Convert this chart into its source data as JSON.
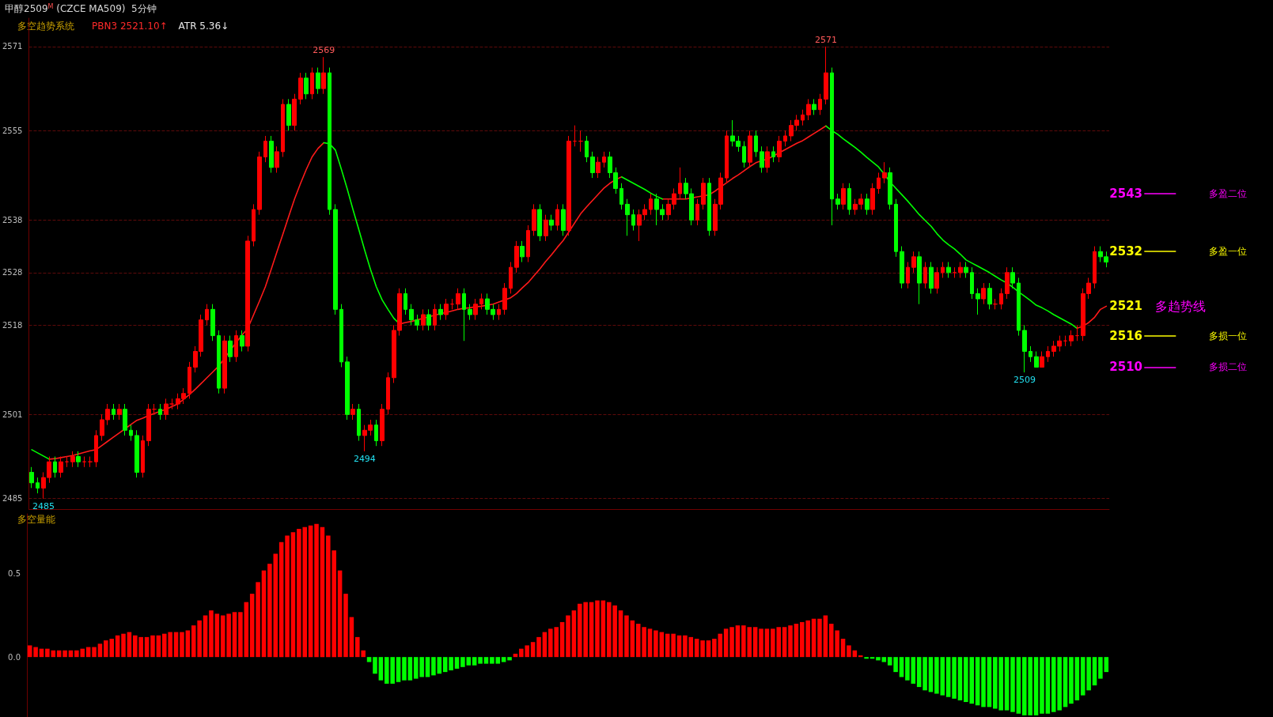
{
  "chart_data": [
    {
      "type": "candlestick",
      "title": "甲醇2509$^{M}$ (CZCE MA509)  5分钟",
      "subtitle": "多空趋势系统",
      "categories": [
        null,
        null,
        null,
        null,
        null,
        null,
        null,
        null,
        null,
        null,
        null,
        null,
        null,
        null,
        null,
        null,
        null,
        null,
        null,
        null,
        null,
        null,
        null,
        null,
        null,
        null,
        null,
        null,
        null,
        null,
        null,
        null,
        null,
        null,
        null,
        null,
        null,
        null,
        null,
        null,
        null,
        null,
        null,
        null,
        null,
        null,
        null,
        null,
        null,
        null,
        null,
        null,
        null,
        null,
        null,
        null,
        null,
        null,
        null,
        null,
        null,
        null,
        null,
        null,
        null,
        null,
        null,
        null,
        null,
        null,
        null,
        null,
        null,
        null,
        null,
        null,
        null,
        null,
        null,
        null,
        null,
        null,
        null,
        null,
        null,
        null,
        null,
        null,
        null,
        null,
        null,
        null,
        null,
        null,
        null,
        null,
        null,
        null,
        null,
        null,
        null,
        null,
        null,
        null,
        null,
        null,
        null,
        null,
        null,
        null,
        null,
        null,
        null,
        null,
        null,
        null,
        null,
        null,
        null,
        null,
        null,
        null,
        null,
        null,
        null,
        null,
        null,
        null,
        null,
        null,
        null,
        null,
        null,
        null,
        null,
        null,
        null,
        null,
        null,
        null,
        null,
        null,
        null,
        null,
        null,
        null,
        null,
        null,
        null,
        null,
        null,
        null,
        null,
        null,
        null,
        null,
        null,
        null,
        null,
        null,
        null,
        null,
        null,
        null,
        null,
        null,
        null,
        null,
        null,
        null,
        null,
        null,
        null,
        null,
        null,
        null,
        null,
        null,
        null,
        null,
        null,
        null,
        null,
        null,
        null
      ],
      "ohlc": [
        [
          2490,
          2491,
          2487,
          2488
        ],
        [
          2488,
          2489,
          2486,
          2487
        ],
        [
          2487,
          2490,
          2485,
          2489
        ],
        [
          2489,
          2493,
          2488,
          2492
        ],
        [
          2492,
          2493,
          2489,
          2490
        ],
        [
          2490,
          2493,
          2489,
          2492
        ],
        [
          2492,
          2493,
          2491,
          2492
        ],
        [
          2492,
          2494,
          2491,
          2493
        ],
        [
          2493,
          2494,
          2491,
          2492
        ],
        [
          2492,
          2493,
          2491,
          2492
        ],
        [
          2492,
          2493,
          2491,
          2492
        ],
        [
          2492,
          2498,
          2491,
          2497
        ],
        [
          2497,
          2501,
          2496,
          2500
        ],
        [
          2500,
          2503,
          2499,
          2502
        ],
        [
          2502,
          2503,
          2500,
          2501
        ],
        [
          2501,
          2503,
          2500,
          2502
        ],
        [
          2502,
          2503,
          2497,
          2498
        ],
        [
          2498,
          2499,
          2496,
          2497
        ],
        [
          2497,
          2498,
          2489,
          2490
        ],
        [
          2490,
          2497,
          2489,
          2496
        ],
        [
          2496,
          2503,
          2495,
          2502
        ],
        [
          2502,
          2503,
          2501,
          2502
        ],
        [
          2502,
          2503,
          2500,
          2501
        ],
        [
          2501,
          2504,
          2500,
          2503
        ],
        [
          2503,
          2504,
          2502,
          2503
        ],
        [
          2503,
          2505,
          2502,
          2504
        ],
        [
          2504,
          2506,
          2503,
          2505
        ],
        [
          2505,
          2511,
          2504,
          2510
        ],
        [
          2510,
          2514,
          2509,
          2513
        ],
        [
          2513,
          2520,
          2512,
          2519
        ],
        [
          2519,
          2522,
          2518,
          2521
        ],
        [
          2521,
          2522,
          2515,
          2516
        ],
        [
          2516,
          2517,
          2505,
          2506
        ],
        [
          2506,
          2516,
          2505,
          2515
        ],
        [
          2515,
          2516,
          2511,
          2512
        ],
        [
          2512,
          2517,
          2511,
          2516
        ],
        [
          2516,
          2517,
          2513,
          2514
        ],
        [
          2514,
          2535,
          2513,
          2534
        ],
        [
          2534,
          2541,
          2533,
          2540
        ],
        [
          2540,
          2551,
          2539,
          2550
        ],
        [
          2550,
          2554,
          2549,
          2553
        ],
        [
          2553,
          2554,
          2547,
          2548
        ],
        [
          2548,
          2552,
          2547,
          2551
        ],
        [
          2551,
          2561,
          2550,
          2560
        ],
        [
          2560,
          2561,
          2555,
          2556
        ],
        [
          2556,
          2562,
          2555,
          2561
        ],
        [
          2561,
          2566,
          2560,
          2565
        ],
        [
          2565,
          2566,
          2561,
          2562
        ],
        [
          2562,
          2567,
          2561,
          2566
        ],
        [
          2566,
          2567,
          2562,
          2563
        ],
        [
          2563,
          2569,
          2562,
          2566
        ],
        [
          2566,
          2567,
          2539,
          2540
        ],
        [
          2540,
          2541,
          2520,
          2521
        ],
        [
          2521,
          2522,
          2510,
          2511
        ],
        [
          2511,
          2512,
          2500,
          2501
        ],
        [
          2501,
          2503,
          2500,
          2502
        ],
        [
          2502,
          2503,
          2496,
          2497
        ],
        [
          2497,
          2499,
          2494,
          2498
        ],
        [
          2498,
          2500,
          2497,
          2499
        ],
        [
          2499,
          2500,
          2495,
          2496
        ],
        [
          2496,
          2503,
          2495,
          2502
        ],
        [
          2502,
          2509,
          2501,
          2508
        ],
        [
          2508,
          2518,
          2507,
          2517
        ],
        [
          2517,
          2525,
          2516,
          2524
        ],
        [
          2524,
          2525,
          2520,
          2521
        ],
        [
          2521,
          2522,
          2518,
          2519
        ],
        [
          2519,
          2520,
          2517,
          2518
        ],
        [
          2518,
          2521,
          2517,
          2520
        ],
        [
          2520,
          2521,
          2517,
          2518
        ],
        [
          2518,
          2522,
          2517,
          2521
        ],
        [
          2521,
          2522,
          2519,
          2520
        ],
        [
          2520,
          2523,
          2519,
          2522
        ],
        [
          2522,
          2523,
          2521,
          2522
        ],
        [
          2522,
          2525,
          2521,
          2524
        ],
        [
          2524,
          2525,
          2515,
          2521
        ],
        [
          2521,
          2522,
          2519,
          2520
        ],
        [
          2520,
          2523,
          2519,
          2522
        ],
        [
          2522,
          2524,
          2521,
          2523
        ],
        [
          2523,
          2524,
          2520,
          2521
        ],
        [
          2521,
          2522,
          2519,
          2520
        ],
        [
          2520,
          2522,
          2519,
          2521
        ],
        [
          2521,
          2526,
          2520,
          2525
        ],
        [
          2525,
          2530,
          2524,
          2529
        ],
        [
          2529,
          2534,
          2528,
          2533
        ],
        [
          2533,
          2534,
          2530,
          2531
        ],
        [
          2531,
          2537,
          2530,
          2536
        ],
        [
          2536,
          2541,
          2535,
          2540
        ],
        [
          2540,
          2541,
          2534,
          2535
        ],
        [
          2535,
          2539,
          2534,
          2538
        ],
        [
          2538,
          2539,
          2536,
          2537
        ],
        [
          2537,
          2541,
          2536,
          2540
        ],
        [
          2540,
          2541,
          2535,
          2536
        ],
        [
          2536,
          2554,
          2535,
          2553
        ],
        [
          2553,
          2556,
          2552,
          2553
        ],
        [
          2553,
          2555,
          2551,
          2553
        ],
        [
          2553,
          2554,
          2549,
          2550
        ],
        [
          2550,
          2551,
          2546,
          2547
        ],
        [
          2547,
          2550,
          2546,
          2549
        ],
        [
          2549,
          2551,
          2548,
          2550
        ],
        [
          2550,
          2551,
          2546,
          2547
        ],
        [
          2547,
          2548,
          2543,
          2544
        ],
        [
          2544,
          2545,
          2540,
          2541
        ],
        [
          2541,
          2542,
          2535,
          2539
        ],
        [
          2539,
          2540,
          2536,
          2537
        ],
        [
          2537,
          2540,
          2534,
          2539
        ],
        [
          2539,
          2541,
          2538,
          2540
        ],
        [
          2540,
          2543,
          2539,
          2542
        ],
        [
          2542,
          2543,
          2537,
          2540
        ],
        [
          2540,
          2541,
          2538,
          2539
        ],
        [
          2539,
          2542,
          2538,
          2541
        ],
        [
          2541,
          2544,
          2540,
          2543
        ],
        [
          2543,
          2548,
          2542,
          2545
        ],
        [
          2545,
          2546,
          2542,
          2543
        ],
        [
          2543,
          2544,
          2537,
          2538
        ],
        [
          2538,
          2542,
          2537,
          2541
        ],
        [
          2541,
          2546,
          2540,
          2545
        ],
        [
          2545,
          2546,
          2535,
          2536
        ],
        [
          2536,
          2542,
          2535,
          2541
        ],
        [
          2541,
          2547,
          2540,
          2546
        ],
        [
          2546,
          2555,
          2545,
          2554
        ],
        [
          2554,
          2557,
          2552,
          2553
        ],
        [
          2553,
          2554,
          2551,
          2552
        ],
        [
          2552,
          2553,
          2548,
          2549
        ],
        [
          2549,
          2555,
          2548,
          2554
        ],
        [
          2554,
          2555,
          2550,
          2551
        ],
        [
          2551,
          2552,
          2547,
          2548
        ],
        [
          2548,
          2552,
          2547,
          2551
        ],
        [
          2551,
          2552,
          2549,
          2550
        ],
        [
          2550,
          2554,
          2549,
          2553
        ],
        [
          2553,
          2555,
          2552,
          2554
        ],
        [
          2554,
          2557,
          2553,
          2556
        ],
        [
          2556,
          2558,
          2555,
          2557
        ],
        [
          2557,
          2559,
          2556,
          2558
        ],
        [
          2558,
          2561,
          2557,
          2560
        ],
        [
          2560,
          2561,
          2558,
          2559
        ],
        [
          2559,
          2562,
          2558,
          2561
        ],
        [
          2561,
          2571,
          2560,
          2566
        ],
        [
          2566,
          2567,
          2537,
          2542
        ],
        [
          2542,
          2543,
          2540,
          2541
        ],
        [
          2541,
          2545,
          2540,
          2544
        ],
        [
          2544,
          2545,
          2539,
          2540
        ],
        [
          2540,
          2542,
          2539,
          2541
        ],
        [
          2541,
          2543,
          2540,
          2542
        ],
        [
          2542,
          2543,
          2539,
          2540
        ],
        [
          2540,
          2545,
          2539,
          2544
        ],
        [
          2544,
          2547,
          2543,
          2546
        ],
        [
          2546,
          2549,
          2545,
          2547
        ],
        [
          2547,
          2548,
          2540,
          2541
        ],
        [
          2541,
          2542,
          2531,
          2532
        ],
        [
          2532,
          2533,
          2525,
          2526
        ],
        [
          2526,
          2530,
          2525,
          2529
        ],
        [
          2529,
          2532,
          2528,
          2531
        ],
        [
          2531,
          2532,
          2522,
          2526
        ],
        [
          2526,
          2530,
          2525,
          2529
        ],
        [
          2529,
          2530,
          2524,
          2525
        ],
        [
          2525,
          2529,
          2524,
          2528
        ],
        [
          2528,
          2530,
          2527,
          2529
        ],
        [
          2529,
          2530,
          2527,
          2528
        ],
        [
          2528,
          2529,
          2527,
          2528
        ],
        [
          2528,
          2530,
          2527,
          2529
        ],
        [
          2529,
          2530,
          2527,
          2528
        ],
        [
          2528,
          2529,
          2523,
          2524
        ],
        [
          2524,
          2525,
          2520,
          2523
        ],
        [
          2523,
          2526,
          2522,
          2525
        ],
        [
          2525,
          2526,
          2521,
          2522
        ],
        [
          2522,
          2523,
          2521,
          2522
        ],
        [
          2522,
          2525,
          2521,
          2524
        ],
        [
          2524,
          2529,
          2523,
          2528
        ],
        [
          2528,
          2529,
          2525,
          2526
        ],
        [
          2526,
          2527,
          2516,
          2517
        ],
        [
          2517,
          2518,
          2509,
          2513
        ],
        [
          2513,
          2514,
          2511,
          2512
        ],
        [
          2512,
          2513,
          2510,
          2510
        ],
        [
          2510,
          2513,
          2510,
          2512
        ],
        [
          2512,
          2514,
          2511,
          2513
        ],
        [
          2513,
          2515,
          2512,
          2514
        ],
        [
          2514,
          2516,
          2513,
          2515
        ],
        [
          2515,
          2516,
          2514,
          2515
        ],
        [
          2515,
          2517,
          2514,
          2516
        ],
        [
          2516,
          2518,
          2515,
          2516
        ],
        [
          2516,
          2525,
          2515,
          2524
        ],
        [
          2524,
          2527,
          2523,
          2526
        ],
        [
          2526,
          2533,
          2525,
          2532
        ],
        [
          2532,
          2533,
          2530,
          2531
        ],
        [
          2531,
          2532,
          2529,
          2530
        ]
      ],
      "colors": [
        "#00ff00",
        "#00ff00",
        "#ff0000",
        "#ff0000",
        "#00ff00",
        "#ff0000",
        "#ff0000",
        "#ff0000",
        "#00ff00",
        "#ff0000",
        "#ff0000",
        "#ff0000",
        "#ff0000",
        "#ff0000",
        "#00ff00",
        "#ff0000",
        "#00ff00",
        "#00ff00",
        "#00ff00",
        "#ff0000",
        "#ff0000",
        "#ff0000",
        "#00ff00",
        "#ff0000",
        "#ff0000",
        "#ff0000",
        "#ff0000",
        "#ff0000",
        "#ff0000",
        "#ff0000",
        "#ff0000",
        "#00ff00",
        "#00ff00",
        "#ff0000",
        "#00ff00",
        "#ff0000",
        "#00ff00",
        "#ff0000",
        "#ff0000",
        "#ff0000",
        "#ff0000",
        "#00ff00",
        "#ff0000",
        "#ff0000",
        "#00ff00",
        "#ff0000",
        "#ff0000",
        "#00ff00",
        "#ff0000",
        "#00ff00",
        "#ff0000",
        "#00ff00",
        "#00ff00",
        "#00ff00",
        "#00ff00",
        "#ff0000",
        "#00ff00",
        "#ff0000",
        "#ff0000",
        "#00ff00",
        "#ff0000",
        "#ff0000",
        "#ff0000",
        "#ff0000",
        "#00ff00",
        "#00ff00",
        "#00ff00",
        "#ff0000",
        "#00ff00",
        "#ff0000",
        "#00ff00",
        "#ff0000",
        "#ff0000",
        "#ff0000",
        "#00ff00",
        "#00ff00",
        "#ff0000",
        "#ff0000",
        "#00ff00",
        "#00ff00",
        "#ff0000",
        "#ff0000",
        "#ff0000",
        "#ff0000",
        "#00ff00",
        "#ff0000",
        "#ff0000",
        "#00ff00",
        "#ff0000",
        "#00ff00",
        "#ff0000",
        "#00ff00",
        "#ff0000",
        "#ff0000",
        "#ff0000",
        "#00ff00",
        "#00ff00",
        "#ff0000",
        "#ff0000",
        "#00ff00",
        "#00ff00",
        "#00ff00",
        "#00ff00",
        "#00ff00",
        "#ff0000",
        "#ff0000",
        "#ff0000",
        "#00ff00",
        "#00ff00",
        "#ff0000",
        "#ff0000",
        "#ff0000",
        "#00ff00",
        "#00ff00",
        "#ff0000",
        "#ff0000",
        "#00ff00",
        "#ff0000",
        "#ff0000",
        "#ff0000",
        "#00ff00",
        "#00ff00",
        "#00ff00",
        "#ff0000",
        "#00ff00",
        "#00ff00",
        "#ff0000",
        "#00ff00",
        "#ff0000",
        "#ff0000",
        "#ff0000",
        "#ff0000",
        "#ff0000",
        "#ff0000",
        "#00ff00",
        "#ff0000",
        "#ff0000",
        "#00ff00",
        "#00ff00",
        "#ff0000",
        "#00ff00",
        "#ff0000",
        "#ff0000",
        "#00ff00",
        "#ff0000",
        "#ff0000",
        "#ff0000",
        "#00ff00",
        "#00ff00",
        "#00ff00",
        "#ff0000",
        "#ff0000",
        "#00ff00",
        "#ff0000",
        "#00ff00",
        "#ff0000",
        "#ff0000",
        "#00ff00",
        "#ff0000",
        "#ff0000",
        "#00ff00",
        "#00ff00",
        "#00ff00",
        "#ff0000",
        "#00ff00",
        "#ff0000",
        "#ff0000",
        "#ff0000",
        "#00ff00",
        "#00ff00",
        "#00ff00",
        "#00ff00",
        "#00ff00",
        "#ff0000",
        "#ff0000",
        "#ff0000",
        "#ff0000",
        "#ff0000",
        "#ff0000",
        "#ff0000",
        "#ff0000",
        "#ff0000",
        "#ff0000",
        "#00ff00",
        "#00ff00"
      ],
      "series": [
        {
          "type": "line",
          "color": "#ff1a1a",
          "values": [
            null,
            null,
            null,
            2492.5,
            2492.6,
            2492.8,
            2493,
            2493.2,
            2493.5,
            2493.8,
            2494.1,
            2494.3,
            2495.1,
            2495.9,
            2496.7,
            2497.5,
            2498.3,
            2499.1,
            2499.9,
            2500.3,
            2500.8,
            2501.2,
            2501.6,
            2502,
            2502.5,
            2503,
            2503.9,
            2504.8,
            2505.8,
            2506.9,
            2508,
            2509.1,
            2510.2,
            2511.7,
            2513.2,
            2514.7,
            2516.1,
            2517.4,
            2520,
            2522.6,
            2525.3,
            2528.6,
            2532,
            2535.3,
            2538.7,
            2542,
            2544.9,
            2547.6,
            2550,
            2551.6,
            2552.7,
            null,
            null,
            null,
            null,
            null,
            null,
            null,
            null,
            null,
            null,
            null,
            null,
            2518.2,
            2518.5,
            2518.7,
            2519,
            2519.3,
            2519.6,
            2519.9,
            2520.2,
            2520.4,
            2520.7,
            2521,
            2521.2,
            2521.3,
            2521.5,
            2521.6,
            2521.8,
            2522,
            2522.4,
            2522.8,
            2523.2,
            2524,
            2525.1,
            2526.1,
            2527.4,
            2528.7,
            2530.1,
            2531.4,
            2532.8,
            2534.1,
            2535.8,
            2537.5,
            2539.2,
            2540.5,
            2541.7,
            2542.9,
            2544.1,
            2545,
            2545.7,
            2546.2,
            null,
            null,
            null,
            null,
            null,
            null,
            2542,
            2542,
            2542,
            2542,
            2542,
            2542.2,
            2542.4,
            2542.6,
            2542.8,
            2543.5,
            2544.3,
            2545.1,
            2545.9,
            2546.6,
            2547.4,
            2548.2,
            2548.9,
            2549.3,
            2549.6,
            2550.2,
            2550.8,
            2551.4,
            2552,
            2552.6,
            2553.1,
            2553.8,
            2554.5,
            2555.2,
            2555.9,
            null,
            null,
            null,
            null,
            null,
            null,
            null,
            null,
            null,
            null,
            null,
            null,
            null,
            null,
            null,
            null,
            null,
            null,
            null,
            null,
            null,
            null,
            null,
            null,
            null,
            null,
            null,
            null,
            null,
            null,
            null,
            null,
            null,
            null,
            null,
            null,
            null,
            null,
            null,
            null,
            null,
            null,
            2517.4,
            2517.8,
            2518.5,
            2519.5,
            2521,
            2521.6
          ]
        },
        {
          "type": "line",
          "color": "#00ff00",
          "values": [
            2494.3,
            2493.7,
            2493.1,
            2492.5,
            null,
            null,
            null,
            null,
            null,
            null,
            null,
            null,
            null,
            null,
            null,
            null,
            null,
            null,
            null,
            null,
            null,
            null,
            null,
            null,
            null,
            null,
            null,
            null,
            null,
            null,
            null,
            null,
            null,
            null,
            null,
            null,
            null,
            null,
            null,
            null,
            null,
            null,
            null,
            null,
            null,
            null,
            null,
            null,
            null,
            null,
            2552.7,
            2552.5,
            2551.3,
            2547.7,
            2544,
            2540,
            2536.2,
            2532.3,
            2528.6,
            2525.3,
            2522.8,
            2521,
            2519.3,
            2518.2,
            null,
            null,
            null,
            null,
            null,
            null,
            null,
            null,
            null,
            null,
            null,
            null,
            null,
            null,
            null,
            null,
            null,
            null,
            null,
            null,
            null,
            null,
            null,
            null,
            null,
            null,
            null,
            null,
            null,
            null,
            null,
            null,
            null,
            null,
            null,
            null,
            null,
            2546.2,
            2545.6,
            2545,
            2544.4,
            2543.8,
            2543.1,
            2542.5,
            2542,
            null,
            null,
            null,
            null,
            null,
            null,
            null,
            null,
            null,
            null,
            null,
            null,
            null,
            null,
            null,
            null,
            null,
            null,
            null,
            null,
            null,
            null,
            null,
            null,
            null,
            null,
            null,
            2555.9,
            2555,
            2554.3,
            2553.4,
            2552.6,
            2551.8,
            2550.9,
            2549.9,
            2549,
            2548.1,
            2546.7,
            2545.2,
            2544,
            2542.8,
            2541.6,
            2540.3,
            2539,
            2537.9,
            2536.8,
            2535.4,
            2534.2,
            2533.3,
            2532.5,
            2531.5,
            2530.4,
            2529.8,
            2529.2,
            2528.6,
            2528,
            2527.3,
            2526.6,
            2526,
            2525.2,
            2524.3,
            2523.5,
            2522.7,
            2521.8,
            2521.3,
            2520.7,
            2520,
            2519.4,
            2518.8,
            2518.2,
            2517.4,
            null,
            null,
            null,
            null,
            null
          ]
        }
      ],
      "ylim": [
        2483,
        2576.4
      ],
      "yticks": [
        2485,
        2501,
        2518,
        2528,
        2538,
        2555,
        2571
      ],
      "grid": "y",
      "tick_labels": "y",
      "ref_lines": [
        {
          "axis": "y",
          "value": 2543,
          "label": "2543",
          "color": "#ff00ff",
          "line_style": "solid"
        },
        {
          "axis": "y",
          "value": 2532,
          "label": "2532",
          "color": "#ffff00",
          "line_style": "solid"
        },
        {
          "axis": "y",
          "value": 2516,
          "label": "2516",
          "color": "#ffff00",
          "line_style": "solid"
        },
        {
          "axis": "y",
          "value": 2510,
          "label": "2510",
          "color": "#ff00ff",
          "line_style": "solid"
        }
      ],
      "annotations": [
        "PBN3 2521.10↑",
        "ATR 5.36↓",
        "2569",
        "2494",
        "2571",
        "2509",
        "2485",
        "2521",
        "多趋势线",
        "多盈二位",
        "多盈一位",
        "多损一位",
        "多损二位"
      ]
    },
    {
      "type": "bar",
      "title": "多空量能",
      "categories": [
        null,
        null,
        null,
        null,
        null,
        null,
        null,
        null,
        null,
        null,
        null,
        null,
        null,
        null,
        null,
        null,
        null,
        null,
        null,
        null,
        null,
        null,
        null,
        null,
        null,
        null,
        null,
        null,
        null,
        null,
        null,
        null,
        null,
        null,
        null,
        null,
        null,
        null,
        null,
        null,
        null,
        null,
        null,
        null,
        null,
        null,
        null,
        null,
        null,
        null,
        null,
        null,
        null,
        null,
        null,
        null,
        null,
        null,
        null,
        null,
        null,
        null,
        null,
        null,
        null,
        null,
        null,
        null,
        null,
        null,
        null,
        null,
        null,
        null,
        null,
        null,
        null,
        null,
        null,
        null,
        null,
        null,
        null,
        null,
        null,
        null,
        null,
        null,
        null,
        null,
        null,
        null,
        null,
        null,
        null,
        null,
        null,
        null,
        null,
        null,
        null,
        null,
        null,
        null,
        null,
        null,
        null,
        null,
        null,
        null,
        null,
        null,
        null,
        null,
        null,
        null,
        null,
        null,
        null,
        null,
        null,
        null,
        null,
        null,
        null,
        null,
        null,
        null,
        null,
        null,
        null,
        null,
        null,
        null,
        null,
        null,
        null,
        null,
        null,
        null,
        null,
        null,
        null,
        null,
        null,
        null,
        null,
        null,
        null,
        null,
        null,
        null,
        null,
        null,
        null,
        null,
        null,
        null,
        null,
        null,
        null,
        null,
        null,
        null,
        null,
        null,
        null,
        null,
        null,
        null,
        null,
        null,
        null,
        null,
        null,
        null,
        null,
        null,
        null,
        null,
        null,
        null,
        null,
        null,
        null
      ],
      "values": [
        0.07,
        0.06,
        0.05,
        0.05,
        0.04,
        0.04,
        0.04,
        0.04,
        0.04,
        0.05,
        0.06,
        0.06,
        0.08,
        0.1,
        0.11,
        0.13,
        0.14,
        0.15,
        0.13,
        0.12,
        0.12,
        0.13,
        0.13,
        0.14,
        0.15,
        0.15,
        0.15,
        0.16,
        0.19,
        0.22,
        0.25,
        0.28,
        0.26,
        0.25,
        0.26,
        0.27,
        0.27,
        0.33,
        0.38,
        0.45,
        0.52,
        0.56,
        0.62,
        0.69,
        0.73,
        0.75,
        0.77,
        0.78,
        0.79,
        0.8,
        0.78,
        0.73,
        0.64,
        0.52,
        0.38,
        0.24,
        0.12,
        0.04,
        -0.03,
        -0.1,
        -0.14,
        -0.16,
        -0.16,
        -0.15,
        -0.14,
        -0.14,
        -0.13,
        -0.12,
        -0.12,
        -0.11,
        -0.1,
        -0.09,
        -0.08,
        -0.07,
        -0.06,
        -0.05,
        -0.05,
        -0.04,
        -0.04,
        -0.04,
        -0.04,
        -0.03,
        -0.02,
        0.02,
        0.05,
        0.07,
        0.09,
        0.12,
        0.15,
        0.17,
        0.18,
        0.21,
        0.25,
        0.28,
        0.32,
        0.33,
        0.33,
        0.34,
        0.34,
        0.33,
        0.31,
        0.28,
        0.25,
        0.22,
        0.2,
        0.18,
        0.17,
        0.16,
        0.15,
        0.14,
        0.14,
        0.13,
        0.13,
        0.12,
        0.11,
        0.1,
        0.1,
        0.11,
        0.14,
        0.17,
        0.18,
        0.19,
        0.19,
        0.18,
        0.18,
        0.17,
        0.17,
        0.17,
        0.18,
        0.18,
        0.19,
        0.2,
        0.21,
        0.22,
        0.23,
        0.23,
        0.25,
        0.2,
        0.16,
        0.11,
        0.07,
        0.04,
        0.01,
        -0.01,
        -0.01,
        -0.02,
        -0.03,
        -0.05,
        -0.09,
        -0.12,
        -0.14,
        -0.16,
        -0.18,
        -0.2,
        -0.21,
        -0.22,
        -0.23,
        -0.24,
        -0.25,
        -0.26,
        -0.27,
        -0.28,
        -0.29,
        -0.3,
        -0.3,
        -0.31,
        -0.32,
        -0.32,
        -0.33,
        -0.34,
        -0.35,
        -0.35,
        -0.35,
        -0.34,
        -0.34,
        -0.33,
        -0.32,
        -0.3,
        -0.28,
        -0.26,
        -0.23,
        -0.2,
        -0.17,
        -0.13,
        -0.09
      ],
      "colors": [
        "#ff0000",
        "#ff0000",
        "#ff0000",
        "#ff0000",
        "#ff0000",
        "#ff0000",
        "#ff0000",
        "#ff0000",
        "#ff0000",
        "#ff0000",
        "#ff0000",
        "#ff0000",
        "#ff0000",
        "#ff0000",
        "#ff0000",
        "#ff0000",
        "#ff0000",
        "#ff0000",
        "#ff0000",
        "#ff0000",
        "#ff0000",
        "#ff0000",
        "#ff0000",
        "#ff0000",
        "#ff0000",
        "#ff0000",
        "#ff0000",
        "#ff0000",
        "#ff0000",
        "#ff0000",
        "#ff0000",
        "#ff0000",
        "#ff0000",
        "#ff0000",
        "#ff0000",
        "#ff0000",
        "#ff0000",
        "#ff0000",
        "#ff0000",
        "#ff0000",
        "#ff0000",
        "#ff0000",
        "#ff0000",
        "#ff0000",
        "#ff0000",
        "#ff0000",
        "#ff0000",
        "#ff0000",
        "#ff0000",
        "#ff0000",
        "#ff0000",
        "#ff0000",
        "#ff0000",
        "#ff0000",
        "#ff0000",
        "#ff0000",
        "#ff0000",
        "#ff0000",
        "#00ff00",
        "#00ff00",
        "#00ff00",
        "#00ff00",
        "#00ff00",
        "#00ff00",
        "#00ff00",
        "#00ff00",
        "#00ff00",
        "#00ff00",
        "#00ff00",
        "#00ff00",
        "#00ff00",
        "#00ff00",
        "#00ff00",
        "#00ff00",
        "#00ff00",
        "#00ff00",
        "#00ff00",
        "#00ff00",
        "#00ff00",
        "#00ff00",
        "#00ff00",
        "#00ff00",
        "#00ff00",
        "#ff0000",
        "#ff0000",
        "#ff0000",
        "#ff0000",
        "#ff0000",
        "#ff0000",
        "#ff0000",
        "#ff0000",
        "#ff0000",
        "#ff0000",
        "#ff0000",
        "#ff0000",
        "#ff0000",
        "#ff0000",
        "#ff0000",
        "#ff0000",
        "#ff0000",
        "#ff0000",
        "#ff0000",
        "#ff0000",
        "#ff0000",
        "#ff0000",
        "#ff0000",
        "#ff0000",
        "#ff0000",
        "#ff0000",
        "#ff0000",
        "#ff0000",
        "#ff0000",
        "#ff0000",
        "#ff0000",
        "#ff0000",
        "#ff0000",
        "#ff0000",
        "#ff0000",
        "#ff0000",
        "#ff0000",
        "#ff0000",
        "#ff0000",
        "#ff0000",
        "#ff0000",
        "#ff0000",
        "#ff0000",
        "#ff0000",
        "#ff0000",
        "#ff0000",
        "#ff0000",
        "#ff0000",
        "#ff0000",
        "#ff0000",
        "#ff0000",
        "#ff0000",
        "#ff0000",
        "#ff0000",
        "#ff0000",
        "#ff0000",
        "#ff0000",
        "#ff0000",
        "#ff0000",
        "#ff0000",
        "#00ff00",
        "#00ff00",
        "#00ff00",
        "#00ff00",
        "#00ff00",
        "#00ff00",
        "#00ff00",
        "#00ff00",
        "#00ff00",
        "#00ff00",
        "#00ff00",
        "#00ff00",
        "#00ff00",
        "#00ff00",
        "#00ff00",
        "#00ff00",
        "#00ff00",
        "#00ff00",
        "#00ff00",
        "#00ff00",
        "#00ff00",
        "#00ff00",
        "#00ff00",
        "#00ff00",
        "#00ff00",
        "#00ff00",
        "#00ff00",
        "#00ff00",
        "#00ff00",
        "#00ff00",
        "#00ff00",
        "#00ff00",
        "#00ff00",
        "#00ff00",
        "#00ff00",
        "#00ff00",
        "#00ff00",
        "#00ff00",
        "#00ff00",
        "#00ff00",
        "#00ff00",
        "#00ff00"
      ],
      "ylim": [
        -0.36,
        0.86
      ],
      "yticks": [
        {
          "value": 0,
          "label": "0.0"
        },
        {
          "value": 0.5,
          "label": "0.5"
        }
      ],
      "tick_labels": "y"
    }
  ]
}
